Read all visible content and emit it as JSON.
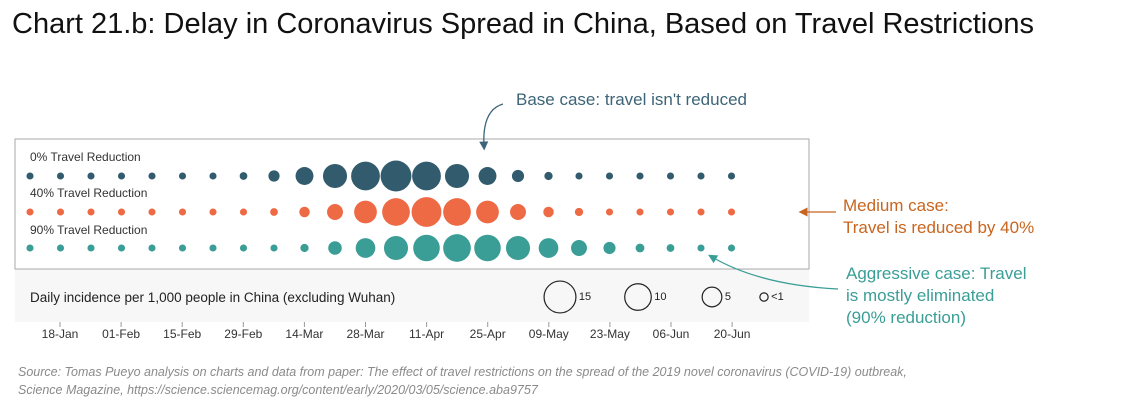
{
  "title": "Chart 21.b: Delay in Coronavirus Spread in China, Based on Travel Restrictions",
  "chart_data": {
    "type": "bubble",
    "x_ticks": [
      "18-Jan",
      "01-Feb",
      "15-Feb",
      "29-Feb",
      "14-Mar",
      "28-Mar",
      "11-Apr",
      "25-Apr",
      "09-May",
      "23-May",
      "06-Jun",
      "20-Jun"
    ],
    "series": [
      {
        "name": "0% Travel Reduction",
        "color": "#335b6e",
        "values": [
          0.3,
          0.3,
          0.3,
          0.3,
          0.3,
          0.3,
          0.3,
          0.4,
          1.2,
          4,
          8,
          12,
          14,
          12,
          8,
          4,
          1.5,
          0.5,
          0.3,
          0.3,
          0.3,
          0.3,
          0.3,
          0.3
        ]
      },
      {
        "name": "40% Travel Reduction",
        "color": "#ee6a45",
        "values": [
          0.3,
          0.3,
          0.3,
          0.3,
          0.3,
          0.3,
          0.3,
          0.3,
          0.4,
          1,
          3,
          7,
          11,
          13,
          11,
          7,
          3,
          1,
          0.5,
          0.3,
          0.3,
          0.3,
          0.3,
          0.3
        ]
      },
      {
        "name": "90% Travel Reduction",
        "color": "#3a9e96",
        "values": [
          0.3,
          0.3,
          0.3,
          0.3,
          0.3,
          0.3,
          0.3,
          0.3,
          0.3,
          0.5,
          2,
          5,
          8,
          10,
          11,
          10,
          8,
          5,
          3,
          1.5,
          0.6,
          0.4,
          0.3,
          0.3
        ]
      }
    ],
    "size_legend": {
      "title": "Daily incidence per 1,000 people in China (excluding Wuhan)",
      "items": [
        {
          "label": "15",
          "value": 15
        },
        {
          "label": "10",
          "value": 10
        },
        {
          "label": "5",
          "value": 5
        },
        {
          "label": "<1",
          "value": 0.5
        }
      ]
    }
  },
  "annotations": {
    "base": [
      "Base case: travel isn't reduced"
    ],
    "medium": [
      "Medium case:",
      "Travel is reduced by 40%"
    ],
    "aggressive": [
      "Aggressive case: Travel",
      "is mostly eliminated",
      "(90% reduction)"
    ]
  },
  "colors": {
    "base": "#3d6478",
    "medium": "#c9651f",
    "aggressive": "#3a9e96",
    "axis": "#999999"
  },
  "source": [
    "Source: Tomas Pueyo analysis on charts and data from paper: The effect of travel restrictions on the spread of the 2019 novel coronavirus (COVID-19) outbreak,",
    "Science Magazine, https://science.sciencemag.org/content/early/2020/03/05/science.aba9757"
  ]
}
